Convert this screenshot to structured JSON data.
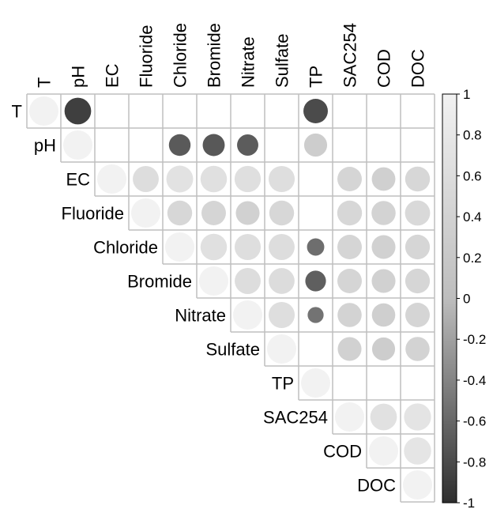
{
  "chart_data": {
    "type": "heatmap",
    "style": "upper-triangle correlation matrix; circle size and grey level encode correlation",
    "variables": [
      "T",
      "pH",
      "EC",
      "Fluoride",
      "Chloride",
      "Bromide",
      "Nitrate",
      "Sulfate",
      "TP",
      "SAC254",
      "COD",
      "DOC"
    ],
    "colorbar": {
      "range": [
        -1,
        1
      ],
      "ticks": [
        "1",
        "0.8",
        "0.6",
        "0.4",
        "0.2",
        "0",
        "-0.2",
        "-0.4",
        "-0.6",
        "-0.8",
        "-1"
      ],
      "low_color": "#2e2e2e",
      "high_color": "#f2f2f2"
    },
    "correlations": [
      [
        1.0,
        -0.83,
        null,
        null,
        null,
        null,
        null,
        null,
        -0.7,
        null,
        null,
        null
      ],
      [
        null,
        1.0,
        null,
        null,
        -0.55,
        -0.57,
        -0.53,
        null,
        0.62,
        null,
        null,
        null
      ],
      [
        null,
        null,
        1.0,
        0.79,
        0.84,
        0.82,
        0.81,
        0.8,
        null,
        0.7,
        0.65,
        0.72
      ],
      [
        null,
        null,
        null,
        1.0,
        0.72,
        0.7,
        0.66,
        0.72,
        null,
        0.72,
        0.68,
        0.74
      ],
      [
        null,
        null,
        null,
        null,
        1.0,
        0.82,
        0.8,
        0.79,
        -0.35,
        0.7,
        0.66,
        0.71
      ],
      [
        null,
        null,
        null,
        null,
        null,
        1.0,
        0.79,
        0.78,
        -0.5,
        0.7,
        0.66,
        0.71
      ],
      [
        null,
        null,
        null,
        null,
        null,
        null,
        1.0,
        0.8,
        -0.3,
        0.68,
        0.64,
        0.7
      ],
      [
        null,
        null,
        null,
        null,
        null,
        null,
        null,
        1.0,
        null,
        0.66,
        0.62,
        0.68
      ],
      [
        null,
        null,
        null,
        null,
        null,
        null,
        null,
        null,
        1.0,
        null,
        null,
        null
      ],
      [
        null,
        null,
        null,
        null,
        null,
        null,
        null,
        null,
        null,
        1.0,
        0.83,
        0.86
      ],
      [
        null,
        null,
        null,
        null,
        null,
        null,
        null,
        null,
        null,
        null,
        1.0,
        0.87
      ],
      [
        null,
        null,
        null,
        null,
        null,
        null,
        null,
        null,
        null,
        null,
        null,
        1.0
      ]
    ]
  }
}
